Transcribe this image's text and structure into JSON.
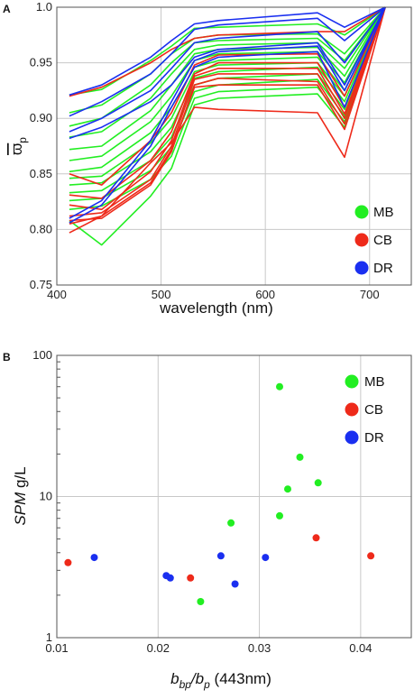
{
  "colors": {
    "MB": "#22ee22",
    "CB": "#ee2a1a",
    "DR": "#1a2ff0"
  },
  "legend": [
    {
      "key": "MB",
      "label": "MB"
    },
    {
      "key": "CB",
      "label": "CB"
    },
    {
      "key": "DR",
      "label": "DR"
    }
  ],
  "chart_data": [
    {
      "panel": "A",
      "type": "line",
      "xlabel": "wavelength (nm)",
      "ylabel": "ϖ",
      "ylabel_sub": "p",
      "xlim": [
        400,
        740
      ],
      "ylim": [
        0.75,
        1.0
      ],
      "grid": true,
      "legend_position": "bottom-right",
      "x_ticks": [
        400,
        500,
        600,
        700
      ],
      "y_ticks": [
        0.75,
        0.8,
        0.85,
        0.9,
        0.95,
        1.0
      ],
      "x_tick_labels": [
        "400",
        "500",
        "600",
        "700"
      ],
      "y_tick_labels": [
        "0.75",
        "0.80",
        "0.85",
        "0.90",
        "0.95",
        "1.0"
      ],
      "x": [
        412,
        443,
        490,
        510,
        532,
        555,
        650,
        676,
        715
      ],
      "series": [
        {
          "group": "MB",
          "values": [
            0.921,
            0.926,
            0.952,
            0.965,
            0.981,
            0.982,
            0.985,
            0.975,
            1.0
          ]
        },
        {
          "group": "MB",
          "values": [
            0.905,
            0.912,
            0.94,
            0.958,
            0.972,
            0.975,
            0.976,
            0.958,
            1.0
          ]
        },
        {
          "group": "MB",
          "values": [
            0.893,
            0.9,
            0.93,
            0.95,
            0.968,
            0.97,
            0.972,
            0.952,
            1.0
          ]
        },
        {
          "group": "MB",
          "values": [
            0.883,
            0.888,
            0.918,
            0.94,
            0.962,
            0.966,
            0.968,
            0.945,
            1.0
          ]
        },
        {
          "group": "MB",
          "values": [
            0.872,
            0.875,
            0.907,
            0.93,
            0.958,
            0.962,
            0.964,
            0.938,
            1.0
          ]
        },
        {
          "group": "MB",
          "values": [
            0.862,
            0.866,
            0.897,
            0.92,
            0.952,
            0.958,
            0.96,
            0.932,
            1.0
          ]
        },
        {
          "group": "MB",
          "values": [
            0.852,
            0.856,
            0.887,
            0.91,
            0.946,
            0.952,
            0.955,
            0.925,
            1.0
          ]
        },
        {
          "group": "MB",
          "values": [
            0.846,
            0.848,
            0.878,
            0.9,
            0.942,
            0.948,
            0.95,
            0.92,
            1.0
          ]
        },
        {
          "group": "MB",
          "values": [
            0.84,
            0.842,
            0.87,
            0.892,
            0.936,
            0.942,
            0.946,
            0.915,
            1.0
          ]
        },
        {
          "group": "MB",
          "values": [
            0.833,
            0.835,
            0.862,
            0.883,
            0.93,
            0.936,
            0.94,
            0.908,
            1.0
          ]
        },
        {
          "group": "MB",
          "values": [
            0.826,
            0.828,
            0.853,
            0.874,
            0.924,
            0.93,
            0.935,
            0.902,
            1.0
          ]
        },
        {
          "group": "MB",
          "values": [
            0.818,
            0.821,
            0.845,
            0.866,
            0.918,
            0.924,
            0.928,
            0.897,
            1.0
          ]
        },
        {
          "group": "MB",
          "values": [
            0.808,
            0.786,
            0.83,
            0.855,
            0.912,
            0.918,
            0.922,
            0.892,
            1.0
          ]
        },
        {
          "group": "CB",
          "values": [
            0.92,
            0.928,
            0.95,
            0.962,
            0.972,
            0.975,
            0.978,
            0.978,
            1.0
          ]
        },
        {
          "group": "CB",
          "values": [
            0.85,
            0.84,
            0.88,
            0.905,
            0.948,
            0.957,
            0.958,
            0.92,
            1.0
          ]
        },
        {
          "group": "CB",
          "values": [
            0.831,
            0.828,
            0.862,
            0.888,
            0.94,
            0.95,
            0.95,
            0.91,
            1.0
          ]
        },
        {
          "group": "CB",
          "values": [
            0.822,
            0.818,
            0.852,
            0.88,
            0.938,
            0.945,
            0.945,
            0.904,
            1.0
          ]
        },
        {
          "group": "CB",
          "values": [
            0.812,
            0.815,
            0.845,
            0.875,
            0.935,
            0.94,
            0.94,
            0.9,
            1.0
          ]
        },
        {
          "group": "CB",
          "values": [
            0.808,
            0.81,
            0.84,
            0.87,
            0.93,
            0.936,
            0.933,
            0.895,
            1.0
          ]
        },
        {
          "group": "CB",
          "values": [
            0.805,
            0.812,
            0.842,
            0.872,
            0.928,
            0.93,
            0.93,
            0.89,
            1.0
          ]
        },
        {
          "group": "CB",
          "values": [
            0.797,
            0.812,
            0.86,
            0.878,
            0.91,
            0.908,
            0.905,
            0.865,
            1.0
          ]
        },
        {
          "group": "DR",
          "values": [
            0.921,
            0.93,
            0.955,
            0.97,
            0.985,
            0.988,
            0.995,
            0.982,
            1.0
          ]
        },
        {
          "group": "DR",
          "values": [
            0.902,
            0.915,
            0.94,
            0.958,
            0.98,
            0.984,
            0.99,
            0.97,
            1.0
          ]
        },
        {
          "group": "DR",
          "values": [
            0.888,
            0.9,
            0.925,
            0.945,
            0.968,
            0.972,
            0.978,
            0.95,
            1.0
          ]
        },
        {
          "group": "DR",
          "values": [
            0.882,
            0.892,
            0.915,
            0.93,
            0.955,
            0.962,
            0.968,
            0.93,
            1.0
          ]
        },
        {
          "group": "DR",
          "values": [
            0.81,
            0.826,
            0.88,
            0.915,
            0.952,
            0.96,
            0.965,
            0.925,
            1.0
          ]
        },
        {
          "group": "DR",
          "values": [
            0.806,
            0.822,
            0.875,
            0.91,
            0.946,
            0.955,
            0.96,
            0.91,
            1.0
          ]
        }
      ]
    },
    {
      "panel": "B",
      "type": "scatter",
      "xlabel_main": "b",
      "xlabel_sub1": "bp",
      "xlabel_mid": "/b",
      "xlabel_sub2": "p",
      "xlabel_tail": " (443nm)",
      "ylabel_main": "SPM",
      "ylabel_tail": " g/L",
      "xlim": [
        0.01,
        0.045
      ],
      "ylim": [
        1,
        100
      ],
      "y_scale": "log",
      "grid": true,
      "legend_position": "top-right",
      "x_ticks": [
        0.01,
        0.02,
        0.03,
        0.04
      ],
      "y_ticks": [
        1,
        10,
        100
      ],
      "x_tick_labels": [
        "0.01",
        "0.02",
        "0.03",
        "0.04"
      ],
      "y_tick_labels": [
        "1",
        "10",
        "100"
      ],
      "points": [
        {
          "group": "MB",
          "x": 0.032,
          "y": 60
        },
        {
          "group": "MB",
          "x": 0.034,
          "y": 19
        },
        {
          "group": "MB",
          "x": 0.0358,
          "y": 12.5
        },
        {
          "group": "MB",
          "x": 0.0328,
          "y": 11.3
        },
        {
          "group": "MB",
          "x": 0.032,
          "y": 7.3
        },
        {
          "group": "MB",
          "x": 0.0272,
          "y": 6.5
        },
        {
          "group": "MB",
          "x": 0.0242,
          "y": 1.8
        },
        {
          "group": "CB",
          "x": 0.0111,
          "y": 3.4
        },
        {
          "group": "CB",
          "x": 0.0232,
          "y": 2.65
        },
        {
          "group": "CB",
          "x": 0.0356,
          "y": 5.1
        },
        {
          "group": "CB",
          "x": 0.041,
          "y": 3.8
        },
        {
          "group": "DR",
          "x": 0.0137,
          "y": 3.7
        },
        {
          "group": "DR",
          "x": 0.0208,
          "y": 2.75
        },
        {
          "group": "DR",
          "x": 0.0212,
          "y": 2.65
        },
        {
          "group": "DR",
          "x": 0.0262,
          "y": 3.8
        },
        {
          "group": "DR",
          "x": 0.0276,
          "y": 2.4
        },
        {
          "group": "DR",
          "x": 0.0306,
          "y": 3.7
        }
      ]
    }
  ]
}
